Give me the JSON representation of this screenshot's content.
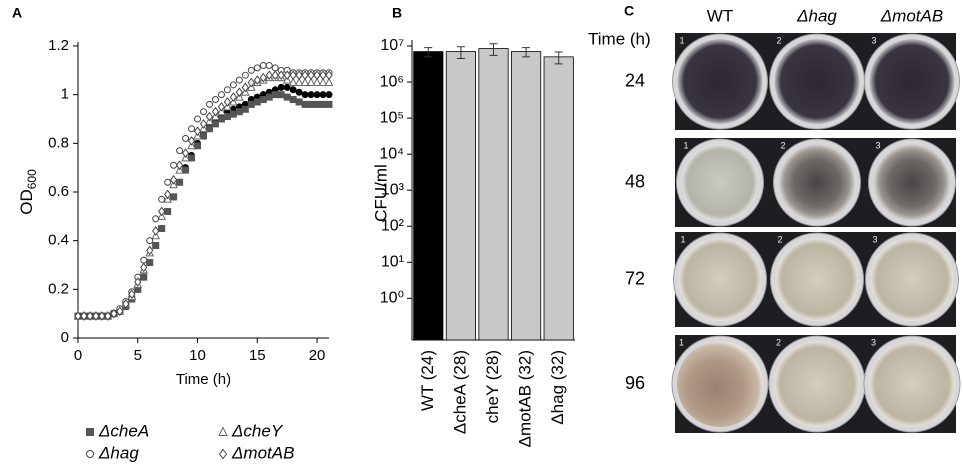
{
  "chart_data": [
    {
      "type": "scatter",
      "panel_label": "A",
      "x_label": "Time (h)",
      "y_label": "OD",
      "y_label_subscript": "600",
      "x": [
        0,
        0.5,
        1,
        1.5,
        2,
        2.5,
        3,
        3.5,
        4,
        4.5,
        5,
        5.5,
        6,
        6.5,
        7,
        7.5,
        8,
        8.5,
        9,
        9.5,
        10,
        10.5,
        11,
        11.5,
        12,
        12.5,
        13,
        13.5,
        14,
        14.5,
        15,
        15.5,
        16,
        16.5,
        17,
        17.5,
        18,
        18.5,
        19,
        19.5,
        20,
        20.5,
        21
      ],
      "xlim": [
        0,
        21
      ],
      "xticks": [
        0,
        5,
        10,
        15,
        20
      ],
      "ylim": [
        0,
        1.2
      ],
      "yticks": [
        0,
        0.2,
        0.4,
        0.6,
        0.8,
        1,
        1.2
      ],
      "legend": "bottom",
      "series": [
        {
          "color": "#000000",
          "marker": "circle",
          "filled": true,
          "values": [
            0.09,
            0.09,
            0.09,
            0.09,
            0.09,
            0.09,
            0.1,
            0.11,
            0.13,
            0.16,
            0.2,
            0.25,
            0.31,
            0.38,
            0.45,
            0.52,
            0.58,
            0.64,
            0.7,
            0.75,
            0.8,
            0.84,
            0.87,
            0.9,
            0.92,
            0.93,
            0.94,
            0.95,
            0.96,
            0.98,
            0.99,
            1.0,
            1.01,
            1.02,
            1.03,
            1.03,
            1.02,
            1.01,
            1.0,
            1.0,
            1.0,
            1.0,
            1.0
          ]
        },
        {
          "name": "ΔcheA",
          "color": "#555555",
          "marker": "square",
          "filled": true,
          "values": [
            0.09,
            0.09,
            0.09,
            0.09,
            0.09,
            0.09,
            0.1,
            0.11,
            0.13,
            0.16,
            0.2,
            0.25,
            0.31,
            0.38,
            0.45,
            0.52,
            0.58,
            0.64,
            0.69,
            0.74,
            0.79,
            0.83,
            0.86,
            0.88,
            0.9,
            0.91,
            0.92,
            0.93,
            0.94,
            0.96,
            0.97,
            0.98,
            0.99,
            1.0,
            1.0,
            0.99,
            0.98,
            0.97,
            0.96,
            0.96,
            0.96,
            0.96,
            0.96
          ]
        },
        {
          "name": "ΔcheY",
          "color": "#666666",
          "marker": "triangle",
          "filled": false,
          "values": [
            0.09,
            0.09,
            0.09,
            0.09,
            0.09,
            0.09,
            0.1,
            0.11,
            0.14,
            0.17,
            0.22,
            0.28,
            0.35,
            0.42,
            0.5,
            0.57,
            0.63,
            0.69,
            0.74,
            0.79,
            0.83,
            0.86,
            0.89,
            0.91,
            0.93,
            0.95,
            0.97,
            0.99,
            1.01,
            1.03,
            1.05,
            1.06,
            1.07,
            1.07,
            1.07,
            1.06,
            1.05,
            1.05,
            1.05,
            1.05,
            1.05,
            1.05,
            1.05
          ]
        },
        {
          "name": "Δhag",
          "color": "#444444",
          "marker": "circle",
          "filled": false,
          "values": [
            0.09,
            0.09,
            0.09,
            0.09,
            0.09,
            0.09,
            0.1,
            0.12,
            0.15,
            0.19,
            0.25,
            0.32,
            0.4,
            0.49,
            0.57,
            0.64,
            0.71,
            0.77,
            0.82,
            0.86,
            0.9,
            0.93,
            0.96,
            0.98,
            1.0,
            1.02,
            1.04,
            1.06,
            1.08,
            1.1,
            1.11,
            1.12,
            1.12,
            1.11,
            1.1,
            1.1,
            1.09,
            1.09,
            1.09,
            1.09,
            1.09,
            1.09,
            1.09
          ]
        },
        {
          "name": "ΔmotAB",
          "color": "#444444",
          "marker": "diamond",
          "filled": false,
          "values": [
            0.09,
            0.09,
            0.09,
            0.09,
            0.09,
            0.09,
            0.1,
            0.11,
            0.14,
            0.18,
            0.23,
            0.29,
            0.36,
            0.44,
            0.52,
            0.59,
            0.65,
            0.71,
            0.76,
            0.81,
            0.85,
            0.88,
            0.91,
            0.93,
            0.95,
            0.97,
            0.99,
            1.01,
            1.03,
            1.05,
            1.06,
            1.07,
            1.08,
            1.08,
            1.08,
            1.08,
            1.08,
            1.08,
            1.08,
            1.08,
            1.08,
            1.08,
            1.08
          ]
        }
      ]
    },
    {
      "type": "bar",
      "panel_label": "B",
      "y_label": "CFU/ml",
      "log_scale": true,
      "categories": [
        "WT (24)",
        "ΔcheA (28)",
        "cheY (28)",
        "ΔmotAB (32)",
        "Δhag (32)"
      ],
      "values": [
        7000000,
        7000000,
        8500000,
        7000000,
        5000000
      ],
      "errors": [
        2000000,
        2500000,
        3000000,
        2000000,
        1800000
      ],
      "colors": [
        "#000000",
        "#c8c8c8",
        "#c8c8c8",
        "#c8c8c8",
        "#c8c8c8"
      ],
      "ylim": [
        0.07,
        10000000
      ],
      "yticks": [
        {
          "value": 1,
          "label": "10⁰"
        },
        {
          "value": 10,
          "label": "10¹"
        },
        {
          "value": 100,
          "label": "10²"
        },
        {
          "value": 1000,
          "label": "10³"
        },
        {
          "value": 10000,
          "label": "10⁴"
        },
        {
          "value": 100000,
          "label": "10⁵"
        },
        {
          "value": 1000000,
          "label": "10⁶"
        },
        {
          "value": 10000000,
          "label": "10⁷"
        }
      ]
    }
  ],
  "photo_panel": {
    "panel_label": "C",
    "row_header": "Time (h)",
    "columns": [
      "WT",
      "Δhag",
      "ΔmotAB"
    ],
    "rows": [
      "24",
      "48",
      "72",
      "96"
    ],
    "well_numbers": [
      "1",
      "2",
      "3"
    ]
  }
}
